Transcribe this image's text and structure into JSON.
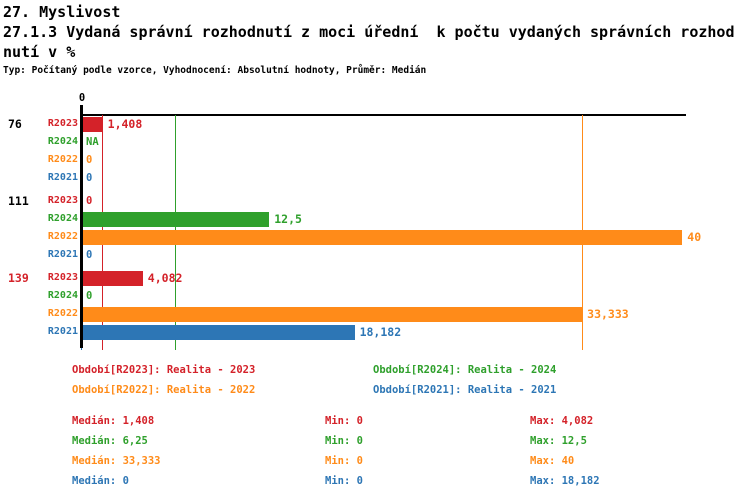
{
  "header": {
    "line1": "27. Myslivost",
    "line2": "27.1.3 Vydaná správní rozhodnutí z moci úřední  k počtu vydaných správních rozhod",
    "line3": "nutí v %",
    "meta": "Typ: Počítaný podle vzorce, Vyhodnocení: Absolutní hodnoty, Průměr: Medián"
  },
  "colors": {
    "R2023": "#d42229",
    "R2024": "#2fa02c",
    "R2022": "#ff8b19",
    "R2021": "#2d76b5",
    "axis": "#000000",
    "group_label_default": "#000000",
    "group_label_highlight": "#d42229"
  },
  "chart_data": {
    "type": "bar",
    "orientation": "horizontal",
    "title": "27.1.3 Vydaná správní rozhodnutí z moci úřední k počtu vydaných správních rozhodnutí v %",
    "axis_tick_label": "0",
    "xlim": [
      0,
      40.3
    ],
    "grid": false,
    "series_order": [
      "R2023",
      "R2024",
      "R2022",
      "R2021"
    ],
    "groups": [
      {
        "label": "76",
        "label_color_key": "group_label_default",
        "rows": [
          {
            "series": "R2023",
            "value": 1.408,
            "display": "1,408"
          },
          {
            "series": "R2024",
            "value": null,
            "display": "NA"
          },
          {
            "series": "R2022",
            "value": 0,
            "display": "0"
          },
          {
            "series": "R2021",
            "value": 0,
            "display": "0"
          }
        ]
      },
      {
        "label": "111",
        "label_color_key": "group_label_default",
        "rows": [
          {
            "series": "R2023",
            "value": 0,
            "display": "0"
          },
          {
            "series": "R2024",
            "value": 12.5,
            "display": "12,5"
          },
          {
            "series": "R2022",
            "value": 40,
            "display": "40"
          },
          {
            "series": "R2021",
            "value": 0,
            "display": "0"
          }
        ]
      },
      {
        "label": "139",
        "label_color_key": "group_label_highlight",
        "rows": [
          {
            "series": "R2023",
            "value": 4.082,
            "display": "4,082"
          },
          {
            "series": "R2024",
            "value": 0,
            "display": "0"
          },
          {
            "series": "R2022",
            "value": 33.333,
            "display": "33,333"
          },
          {
            "series": "R2021",
            "value": 18.182,
            "display": "18,182"
          }
        ]
      }
    ],
    "median_lines": [
      {
        "series": "R2023",
        "value": 1.408
      },
      {
        "series": "R2024",
        "value": 6.25
      },
      {
        "series": "R2022",
        "value": 33.333
      },
      {
        "series": "R2021",
        "value": 0
      }
    ]
  },
  "legend": [
    {
      "series": "R2023",
      "label": "Období[R2023]: Realita - 2023"
    },
    {
      "series": "R2024",
      "label": "Období[R2024]: Realita - 2024"
    },
    {
      "series": "R2022",
      "label": "Období[R2022]: Realita - 2022"
    },
    {
      "series": "R2021",
      "label": "Období[R2021]: Realita - 2021"
    }
  ],
  "stats": [
    {
      "series": "R2023",
      "median": "Medián: 1,408",
      "min": "Min: 0",
      "max": "Max: 4,082"
    },
    {
      "series": "R2024",
      "median": "Medián: 6,25",
      "min": "Min: 0",
      "max": "Max: 12,5"
    },
    {
      "series": "R2022",
      "median": "Medián: 33,333",
      "min": "Min: 0",
      "max": "Max: 40"
    },
    {
      "series": "R2021",
      "median": "Medián: 0",
      "min": "Min: 0",
      "max": "Max: 18,182"
    }
  ]
}
